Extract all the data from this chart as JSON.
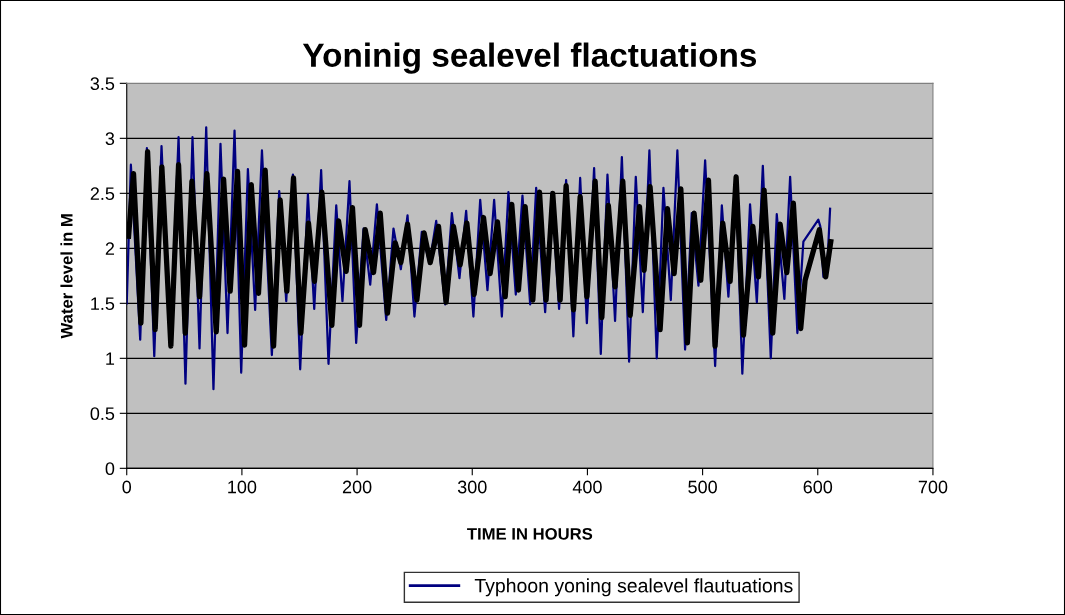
{
  "chart_data": {
    "type": "line",
    "title": "Yoninig sealevel flactuations",
    "xlabel": "TIME IN HOURS",
    "ylabel": "Water level in M",
    "xlim": [
      0,
      700
    ],
    "xticks": [
      0,
      100,
      200,
      300,
      400,
      500,
      600,
      700
    ],
    "ylim": [
      0,
      3.5
    ],
    "yticks": [
      0,
      0.5,
      1,
      1.5,
      2,
      2.5,
      3,
      3.5
    ],
    "grid": "y",
    "legend": "bottom",
    "marker": "none",
    "line_style": "solid",
    "series": [
      {
        "name": "Typhoon yoning sealevel flautuations",
        "color": "#000080",
        "x": [
          0,
          3.6,
          11.7,
          17.5,
          23.9,
          30.2,
          37.8,
          45.0,
          51.0,
          57.1,
          63.2,
          69.0,
          75.3,
          81.4,
          87.5,
          93.6,
          99.4,
          105.2,
          111.5,
          117.4,
          126.0,
          132.4,
          138.5,
          144.3,
          150.6,
          157.3,
          162.8,
          168.8,
          175.2,
          181.9,
          187.3,
          193.4,
          199.2,
          205.6,
          211.4,
          217.2,
          225.3,
          231.6,
          238.0,
          243.8,
          249.8,
          256.2,
          262.9,
          268.7,
          276.5,
          282.3,
          288.9,
          294.7,
          301.0,
          306.9,
          313.2,
          319.0,
          325.7,
          331.4,
          337.8,
          343.6,
          350.3,
          355.5,
          363.3,
          369.1,
          375.4,
          381.5,
          387.8,
          393.7,
          399.5,
          405.8,
          411.6,
          417.4,
          424.0,
          429.9,
          436.2,
          442.0,
          448.1,
          453.8,
          460.2,
          466.0,
          472.4,
          478.1,
          484.8,
          490.6,
          496.4,
          502.2,
          510.9,
          516.7,
          522.4,
          528.8,
          534.5,
          541.2,
          547.1,
          552.3,
          559.2,
          564.4,
          571.0,
          576.0,
          582.3,
          587.5,
          600.5,
          602.2,
          604.9,
          607.8,
          610.7
        ],
        "values": [
          1.5,
          2.76,
          1.17,
          2.91,
          1.02,
          2.93,
          1.11,
          3.01,
          0.77,
          3.01,
          1.09,
          3.1,
          0.72,
          2.95,
          1.23,
          3.07,
          0.87,
          2.72,
          1.44,
          2.89,
          1.03,
          2.52,
          1.52,
          2.67,
          0.9,
          2.49,
          1.45,
          2.71,
          0.95,
          2.39,
          1.52,
          2.61,
          1.14,
          2.18,
          1.67,
          2.4,
          1.35,
          2.18,
          1.81,
          2.3,
          1.38,
          2.15,
          1.86,
          2.25,
          1.49,
          2.32,
          1.73,
          2.34,
          1.38,
          2.44,
          1.62,
          2.44,
          1.38,
          2.51,
          1.58,
          2.48,
          1.49,
          2.55,
          1.42,
          2.51,
          1.45,
          2.62,
          1.2,
          2.64,
          1.32,
          2.73,
          1.04,
          2.67,
          1.34,
          2.83,
          0.97,
          2.65,
          1.42,
          2.89,
          1.0,
          2.55,
          1.53,
          2.89,
          1.08,
          2.32,
          1.66,
          2.8,
          0.93,
          2.39,
          1.56,
          2.66,
          0.86,
          2.4,
          1.51,
          2.75,
          1.0,
          2.31,
          1.54,
          2.65,
          1.23,
          2.06,
          2.26,
          2.2,
          1.74,
          1.74,
          2.36
        ]
      },
      {
        "color": "#000000",
        "x": [
          1.6,
          5.9,
          12.3,
          18.1,
          24.7,
          30.5,
          38.3,
          45.0,
          50.8,
          56.6,
          63.2,
          69.6,
          77.7,
          84.1,
          89.8,
          96.2,
          102.3,
          108.1,
          114.4,
          120.2,
          127.5,
          133.2,
          139.0,
          144.8,
          151.2,
          157.8,
          163.0,
          169.4,
          178.1,
          183.9,
          190.5,
          196.0,
          202.1,
          207.0,
          214.3,
          220.1,
          226.4,
          233.1,
          238.0,
          243.8,
          251.9,
          258.2,
          263.5,
          270.7,
          277.3,
          283.7,
          289.5,
          295.3,
          301.6,
          309.8,
          315.5,
          321.9,
          328.6,
          334.3,
          340.1,
          345.9,
          352.6,
          358.4,
          364.1,
          369.9,
          376.3,
          381.5,
          387.9,
          393.7,
          399.5,
          406.7,
          412.5,
          418.2,
          424.0,
          430.7,
          437.1,
          445.2,
          449.2,
          454.4,
          463.1,
          469.5,
          475.3,
          481.1,
          486.8,
          492.6,
          498.4,
          505.1,
          510.8,
          517.5,
          523.9,
          529.1,
          535.5,
          543.6,
          548.5,
          553.4,
          560.9,
          567.3,
          573.1,
          578.8,
          585.2,
          589.0,
          601.4,
          606.9,
          611.3
        ],
        "values": [
          2.11,
          2.68,
          1.32,
          2.88,
          1.26,
          2.74,
          1.11,
          2.76,
          1.23,
          2.61,
          1.56,
          2.68,
          1.24,
          2.63,
          1.61,
          2.7,
          1.12,
          2.58,
          1.59,
          2.71,
          1.11,
          2.44,
          1.61,
          2.64,
          1.23,
          2.23,
          1.7,
          2.51,
          1.3,
          2.25,
          1.79,
          2.37,
          1.3,
          2.17,
          1.78,
          2.32,
          1.41,
          2.05,
          1.87,
          2.22,
          1.53,
          2.14,
          1.87,
          2.2,
          1.51,
          2.2,
          1.85,
          2.23,
          1.58,
          2.28,
          1.77,
          2.24,
          1.56,
          2.4,
          1.62,
          2.38,
          1.53,
          2.51,
          1.53,
          2.5,
          1.53,
          2.57,
          1.44,
          2.47,
          1.56,
          2.61,
          1.37,
          2.39,
          1.65,
          2.61,
          1.39,
          2.38,
          1.8,
          2.56,
          1.26,
          2.36,
          1.77,
          2.54,
          1.14,
          2.32,
          1.71,
          2.62,
          1.11,
          2.23,
          1.7,
          2.65,
          1.21,
          2.2,
          1.74,
          2.53,
          1.23,
          2.22,
          1.78,
          2.41,
          1.27,
          1.71,
          2.17,
          1.74,
          2.06
        ]
      }
    ]
  }
}
